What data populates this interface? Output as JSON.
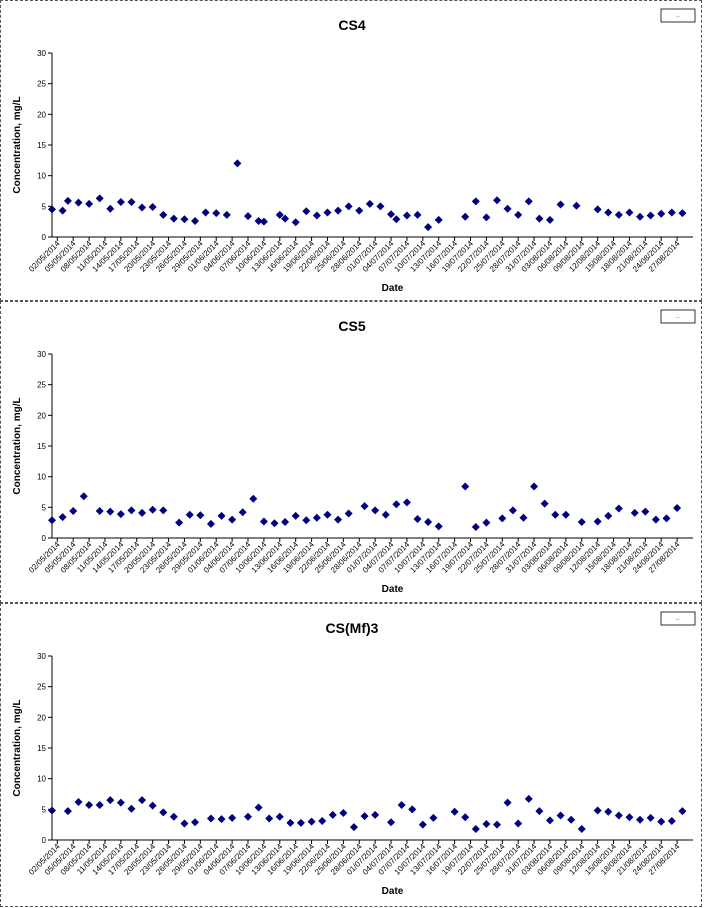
{
  "chart_data": [
    {
      "type": "scatter",
      "title": "CS4",
      "xlabel": "Date",
      "ylabel": "Concentration, mg/L",
      "ylim": [
        0,
        30
      ],
      "yticks": [
        0,
        5,
        10,
        15,
        20,
        25,
        30
      ],
      "x_start": "2014-05-01",
      "x_end": "2014-08-30",
      "tick_labels": [
        "02/05/2014",
        "05/05/2014",
        "08/05/2014",
        "11/05/2014",
        "14/05/2014",
        "17/05/2014",
        "20/05/2014",
        "23/05/2014",
        "26/05/2014",
        "29/05/2014",
        "01/06/2014",
        "04/06/2014",
        "07/06/2014",
        "10/06/2014",
        "13/06/2014",
        "16/06/2014",
        "19/06/2014",
        "22/06/2014",
        "25/06/2014",
        "28/06/2014",
        "01/07/2014",
        "04/07/2014",
        "07/07/2014",
        "10/07/2014",
        "13/07/2014",
        "16/07/2014",
        "19/07/2014",
        "22/07/2014",
        "25/07/2014",
        "28/07/2014",
        "31/07/2014",
        "03/08/2014",
        "06/08/2014",
        "09/08/2014",
        "12/08/2014",
        "15/08/2014",
        "18/08/2014",
        "21/08/2014",
        "24/08/2014",
        "27/08/2014"
      ],
      "legend": "•---",
      "marker_color": "#00007f",
      "grid": false,
      "x": [
        "2014-05-01",
        "2014-05-03",
        "2014-05-04",
        "2014-05-06",
        "2014-05-08",
        "2014-05-10",
        "2014-05-12",
        "2014-05-14",
        "2014-05-16",
        "2014-05-18",
        "2014-05-20",
        "2014-05-22",
        "2014-05-24",
        "2014-05-26",
        "2014-05-28",
        "2014-05-30",
        "2014-06-01",
        "2014-06-03",
        "2014-06-05",
        "2014-06-07",
        "2014-06-09",
        "2014-06-10",
        "2014-06-13",
        "2014-06-14",
        "2014-06-16",
        "2014-06-18",
        "2014-06-20",
        "2014-06-22",
        "2014-06-24",
        "2014-06-26",
        "2014-06-28",
        "2014-06-30",
        "2014-07-02",
        "2014-07-04",
        "2014-07-05",
        "2014-07-07",
        "2014-07-09",
        "2014-07-11",
        "2014-07-13",
        "2014-07-18",
        "2014-07-20",
        "2014-07-22",
        "2014-07-24",
        "2014-07-26",
        "2014-07-28",
        "2014-07-30",
        "2014-08-01",
        "2014-08-03",
        "2014-08-05",
        "2014-08-08",
        "2014-08-12",
        "2014-08-14",
        "2014-08-16",
        "2014-08-18",
        "2014-08-20",
        "2014-08-22",
        "2014-08-24",
        "2014-08-26",
        "2014-08-28"
      ],
      "values": [
        4.5,
        4.3,
        5.9,
        5.6,
        5.4,
        6.3,
        4.6,
        5.7,
        5.7,
        4.8,
        4.9,
        3.6,
        3.0,
        2.9,
        2.6,
        4.0,
        3.9,
        3.6,
        12.0,
        3.4,
        2.6,
        2.5,
        3.6,
        3.0,
        2.4,
        4.2,
        3.5,
        4.0,
        4.3,
        5.0,
        4.3,
        5.4,
        5.0,
        3.7,
        2.9,
        3.5,
        3.6,
        1.6,
        2.8,
        3.3,
        5.8,
        3.2,
        6.0,
        4.6,
        3.6,
        5.8,
        3.0,
        2.8,
        5.3,
        5.1,
        4.5,
        4.0,
        3.6,
        4.0,
        3.3,
        3.5,
        3.8,
        4.0,
        3.9
      ]
    },
    {
      "type": "scatter",
      "title": "CS5",
      "xlabel": "Date",
      "ylabel": "Concentration, mg/L",
      "ylim": [
        0,
        30
      ],
      "yticks": [
        0,
        5,
        10,
        15,
        20,
        25,
        30
      ],
      "x_start": "2014-05-01",
      "x_end": "2014-08-30",
      "tick_labels": [
        "02/05/2014",
        "05/05/2014",
        "08/05/2014",
        "11/05/2014",
        "14/05/2014",
        "17/05/2014",
        "20/05/2014",
        "23/05/2014",
        "26/05/2014",
        "29/05/2014",
        "01/06/2014",
        "04/06/2014",
        "07/06/2014",
        "10/06/2014",
        "13/06/2014",
        "16/06/2014",
        "19/06/2014",
        "22/06/2014",
        "25/06/2014",
        "28/06/2014",
        "01/07/2014",
        "04/07/2014",
        "07/07/2014",
        "10/07/2014",
        "13/07/2014",
        "16/07/2014",
        "19/07/2014",
        "22/07/2014",
        "25/07/2014",
        "28/07/2014",
        "31/07/2014",
        "03/08/2014",
        "06/08/2014",
        "09/08/2014",
        "12/08/2014",
        "15/08/2014",
        "18/08/2014",
        "21/08/2014",
        "24/08/2014",
        "27/08/2014"
      ],
      "legend": "•---",
      "marker_color": "#00007f",
      "grid": false,
      "x": [
        "2014-05-01",
        "2014-05-03",
        "2014-05-05",
        "2014-05-07",
        "2014-05-10",
        "2014-05-12",
        "2014-05-14",
        "2014-05-16",
        "2014-05-18",
        "2014-05-20",
        "2014-05-22",
        "2014-05-25",
        "2014-05-27",
        "2014-05-29",
        "2014-05-31",
        "2014-06-02",
        "2014-06-04",
        "2014-06-06",
        "2014-06-08",
        "2014-06-10",
        "2014-06-12",
        "2014-06-14",
        "2014-06-16",
        "2014-06-18",
        "2014-06-20",
        "2014-06-22",
        "2014-06-24",
        "2014-06-26",
        "2014-06-29",
        "2014-07-01",
        "2014-07-03",
        "2014-07-05",
        "2014-07-07",
        "2014-07-09",
        "2014-07-11",
        "2014-07-13",
        "2014-07-18",
        "2014-07-20",
        "2014-07-22",
        "2014-07-25",
        "2014-07-27",
        "2014-07-29",
        "2014-07-31",
        "2014-08-02",
        "2014-08-04",
        "2014-08-06",
        "2014-08-09",
        "2014-08-12",
        "2014-08-14",
        "2014-08-16",
        "2014-08-19",
        "2014-08-21",
        "2014-08-23",
        "2014-08-25",
        "2014-08-27"
      ],
      "values": [
        2.9,
        3.4,
        4.4,
        6.8,
        4.4,
        4.3,
        3.9,
        4.5,
        4.1,
        4.6,
        4.5,
        2.5,
        3.8,
        3.7,
        2.3,
        3.6,
        3.0,
        4.2,
        6.4,
        2.7,
        2.4,
        2.6,
        3.6,
        2.9,
        3.3,
        3.8,
        3.0,
        4.0,
        5.2,
        4.5,
        3.8,
        5.5,
        5.8,
        3.1,
        2.6,
        1.9,
        8.4,
        1.8,
        2.5,
        3.2,
        4.5,
        3.3,
        8.4,
        5.6,
        3.8,
        3.8,
        2.6,
        2.7,
        3.6,
        4.8,
        4.1,
        4.3,
        3.0,
        3.2,
        4.9
      ]
    },
    {
      "type": "scatter",
      "title": "CS(Mf)3",
      "xlabel": "Date",
      "ylabel": "Concentration, mg/L",
      "ylim": [
        0,
        30
      ],
      "yticks": [
        0,
        5,
        10,
        15,
        20,
        25,
        30
      ],
      "x_start": "2014-05-01",
      "x_end": "2014-08-30",
      "tick_labels": [
        "02/05/2014",
        "05/05/2014",
        "08/05/2014",
        "11/05/2014",
        "14/05/2014",
        "17/05/2014",
        "20/05/2014",
        "23/05/2014",
        "26/05/2014",
        "29/05/2014",
        "01/06/2014",
        "04/06/2014",
        "07/06/2014",
        "10/06/2014",
        "13/06/2014",
        "16/06/2014",
        "19/06/2014",
        "22/06/2014",
        "25/06/2014",
        "28/06/2014",
        "01/07/2014",
        "04/07/2014",
        "07/07/2014",
        "10/07/2014",
        "13/07/2014",
        "16/07/2014",
        "19/07/2014",
        "22/07/2014",
        "25/07/2014",
        "28/07/2014",
        "31/07/2014",
        "03/08/2014",
        "06/08/2014",
        "09/08/2014",
        "12/08/2014",
        "15/08/2014",
        "18/08/2014",
        "21/08/2014",
        "24/08/2014",
        "27/08/2014"
      ],
      "legend": "•---",
      "marker_color": "#00007f",
      "grid": false,
      "x": [
        "2014-05-01",
        "2014-05-04",
        "2014-05-06",
        "2014-05-08",
        "2014-05-10",
        "2014-05-12",
        "2014-05-14",
        "2014-05-16",
        "2014-05-18",
        "2014-05-20",
        "2014-05-22",
        "2014-05-24",
        "2014-05-26",
        "2014-05-28",
        "2014-05-31",
        "2014-06-02",
        "2014-06-04",
        "2014-06-07",
        "2014-06-09",
        "2014-06-11",
        "2014-06-13",
        "2014-06-15",
        "2014-06-17",
        "2014-06-19",
        "2014-06-21",
        "2014-06-23",
        "2014-06-25",
        "2014-06-27",
        "2014-06-29",
        "2014-07-01",
        "2014-07-04",
        "2014-07-06",
        "2014-07-08",
        "2014-07-10",
        "2014-07-12",
        "2014-07-16",
        "2014-07-18",
        "2014-07-20",
        "2014-07-22",
        "2014-07-24",
        "2014-07-26",
        "2014-07-28",
        "2014-07-30",
        "2014-08-01",
        "2014-08-03",
        "2014-08-05",
        "2014-08-07",
        "2014-08-09",
        "2014-08-12",
        "2014-08-14",
        "2014-08-16",
        "2014-08-18",
        "2014-08-20",
        "2014-08-22",
        "2014-08-24",
        "2014-08-26",
        "2014-08-28"
      ],
      "values": [
        4.8,
        4.7,
        6.2,
        5.7,
        5.7,
        6.5,
        6.1,
        5.1,
        6.5,
        5.6,
        4.5,
        3.8,
        2.7,
        2.9,
        3.5,
        3.4,
        3.6,
        3.8,
        5.3,
        3.5,
        3.8,
        2.8,
        2.8,
        3.0,
        3.1,
        4.1,
        4.4,
        2.1,
        3.9,
        4.1,
        2.9,
        5.7,
        5.0,
        2.5,
        3.6,
        4.6,
        3.7,
        1.8,
        2.6,
        2.5,
        6.1,
        2.7,
        6.7,
        4.7,
        3.2,
        4.0,
        3.3,
        1.8,
        4.8,
        4.6,
        4.0,
        3.7,
        3.3,
        3.6,
        3.0,
        3.1,
        4.7
      ]
    }
  ]
}
